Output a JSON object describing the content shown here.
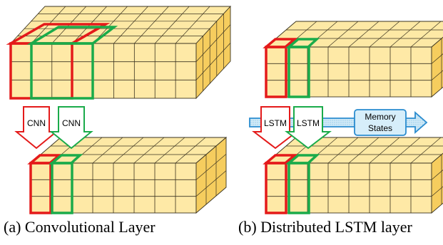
{
  "panels": [
    {
      "id": "a",
      "caption": "(a) Convolutional Layer",
      "label_left": "CNN",
      "label_right": "CNN"
    },
    {
      "id": "b",
      "caption": "(b) Distributed LSTM layer",
      "label_left": "LSTM",
      "label_right": "LSTM",
      "memory_label_line1": "Memory",
      "memory_label_line2": "States"
    }
  ],
  "colors": {
    "cube_fill_front": "#fee9a6",
    "cube_fill_top": "#fde9a5",
    "cube_fill_side": "#f6cd5e",
    "grid_line": "#3a3320",
    "highlight_red": "#e41a1a",
    "highlight_green": "#1aab4a",
    "memory_fill": "#bfe2f4",
    "memory_border": "#2a8ccf"
  }
}
